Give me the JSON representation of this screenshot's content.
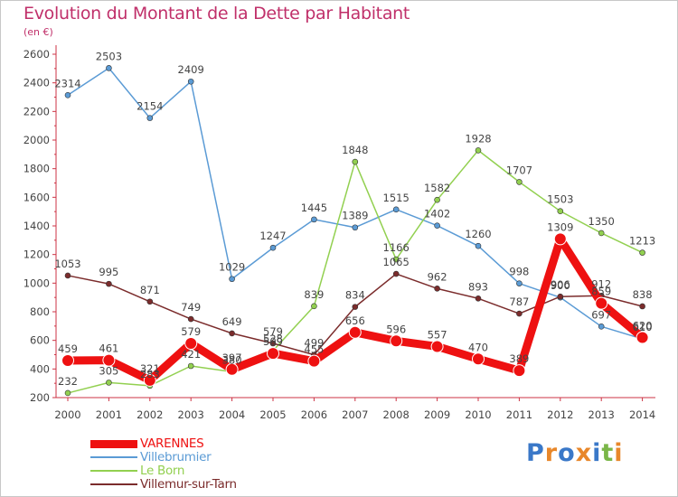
{
  "title": "Evolution du Montant de la Dette par Habitant",
  "subtitle": "(en €)",
  "logo": "Proxiti",
  "chart_data": {
    "type": "line",
    "title": "Evolution du Montant de la Dette par Habitant",
    "ylabel": "(en €)",
    "xlabel": "",
    "ylim": [
      200,
      2600
    ],
    "yticks": [
      200,
      400,
      600,
      800,
      1000,
      1200,
      1400,
      1600,
      1800,
      2000,
      2200,
      2400,
      2600
    ],
    "grid": false,
    "legend_position": "bottom-left",
    "categories": [
      "2000",
      "2001",
      "2002",
      "2003",
      "2004",
      "2005",
      "2006",
      "2007",
      "2008",
      "2009",
      "2010",
      "2011",
      "2012",
      "2013",
      "2014"
    ],
    "series": [
      {
        "name": "VARENNES",
        "color": "#ee1111",
        "values": [
          459,
          461,
          321,
          579,
          397,
          509,
          455,
          656,
          596,
          557,
          470,
          389,
          1309,
          859,
          620
        ]
      },
      {
        "name": "Villebrumier",
        "color": "#5b9bd5",
        "values": [
          2314,
          2503,
          2154,
          2409,
          1029,
          1247,
          1445,
          1389,
          1515,
          1402,
          1260,
          998,
          900,
          697,
          610
        ]
      },
      {
        "name": "Le Born",
        "color": "#92d050",
        "values": [
          232,
          305,
          283,
          421,
          380,
          528,
          839,
          1848,
          1166,
          1582,
          1928,
          1707,
          1503,
          1350,
          1213
        ]
      },
      {
        "name": "Villemur-sur-Tarn",
        "color": "#7b2c2c",
        "values": [
          1053,
          995,
          871,
          749,
          649,
          579,
          499,
          834,
          1065,
          962,
          893,
          787,
          906,
          912,
          838
        ]
      }
    ]
  }
}
